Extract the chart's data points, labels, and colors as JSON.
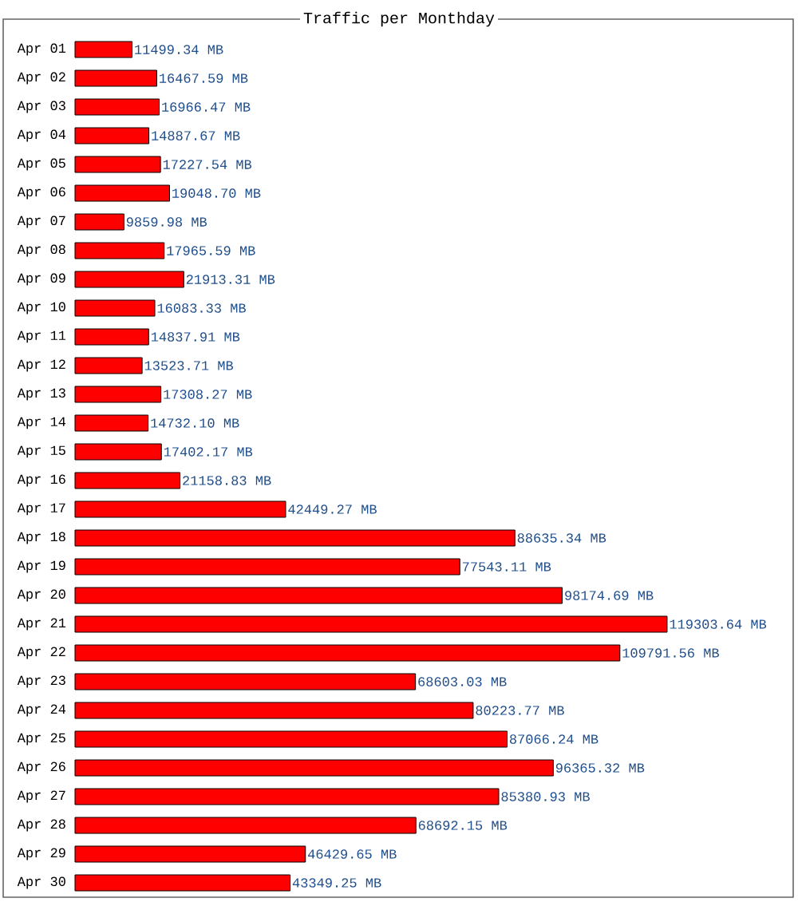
{
  "chart_data": {
    "type": "bar",
    "orientation": "horizontal",
    "title": "Traffic per Monthday",
    "categories": [
      "Apr 01",
      "Apr 02",
      "Apr 03",
      "Apr 04",
      "Apr 05",
      "Apr 06",
      "Apr 07",
      "Apr 08",
      "Apr 09",
      "Apr 10",
      "Apr 11",
      "Apr 12",
      "Apr 13",
      "Apr 14",
      "Apr 15",
      "Apr 16",
      "Apr 17",
      "Apr 18",
      "Apr 19",
      "Apr 20",
      "Apr 21",
      "Apr 22",
      "Apr 23",
      "Apr 24",
      "Apr 25",
      "Apr 26",
      "Apr 27",
      "Apr 28",
      "Apr 29",
      "Apr 30"
    ],
    "values": [
      11499.34,
      16467.59,
      16966.47,
      14887.67,
      17227.54,
      19048.7,
      9859.98,
      17965.59,
      21913.31,
      16083.33,
      14837.91,
      13523.71,
      17308.27,
      14732.1,
      17402.17,
      21158.83,
      42449.27,
      88635.34,
      77543.11,
      98174.69,
      119303.64,
      109791.56,
      68603.03,
      80223.77,
      87066.24,
      96365.32,
      85380.93,
      68692.15,
      46429.65,
      43349.25
    ],
    "value_labels": [
      "11499.34 MB",
      "16467.59 MB",
      "16966.47 MB",
      "14887.67 MB",
      "17227.54 MB",
      "19048.70 MB",
      "9859.98 MB",
      "17965.59 MB",
      "21913.31 MB",
      "16083.33 MB",
      "14837.91 MB",
      "13523.71 MB",
      "17308.27 MB",
      "14732.10 MB",
      "17402.17 MB",
      "21158.83 MB",
      "42449.27 MB",
      "88635.34 MB",
      "77543.11 MB",
      "98174.69 MB",
      "119303.64 MB",
      "109791.56 MB",
      "68603.03 MB",
      "80223.77 MB",
      "87066.24 MB",
      "96365.32 MB",
      "85380.93 MB",
      "68692.15 MB",
      "46429.65 MB",
      "43349.25 MB"
    ],
    "color": "#ff0000"
  }
}
